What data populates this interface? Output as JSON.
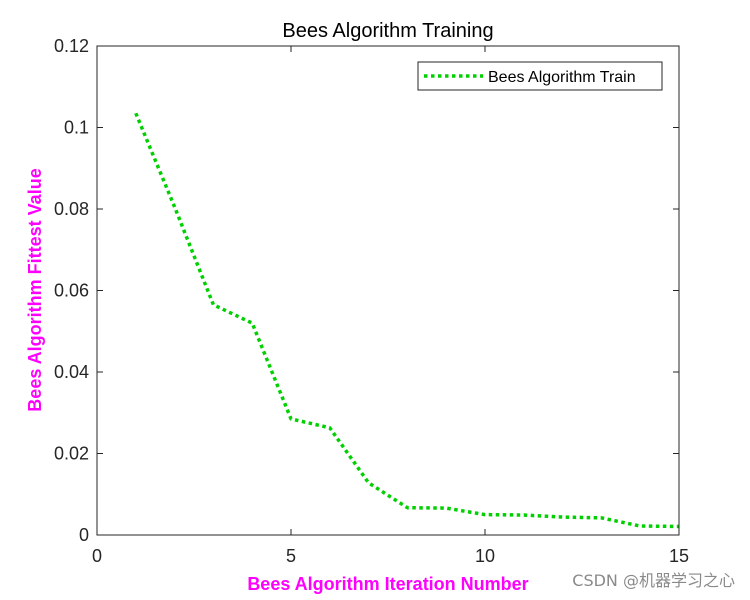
{
  "chart_data": {
    "type": "line",
    "title": "Bees Algorithm Training",
    "xlabel": "Bees Algorithm Iteration Number",
    "ylabel": "Bees Algorithm Fittest Value",
    "xlim": [
      0,
      15
    ],
    "ylim": [
      0,
      0.12
    ],
    "xticks": [
      0,
      5,
      10,
      15
    ],
    "yticks": [
      0,
      0.02,
      0.04,
      0.06,
      0.08,
      0.1,
      0.12
    ],
    "xtick_labels": [
      "0",
      "5",
      "10",
      "15"
    ],
    "ytick_labels": [
      "0",
      "0.02",
      "0.04",
      "0.06",
      "0.08",
      "0.1",
      "0.12"
    ],
    "grid": false,
    "legend_position": "top-right",
    "series": [
      {
        "name": "Bees Algorithm Train",
        "color": "#00d000",
        "line_style": "dotted",
        "x": [
          1,
          2,
          3,
          4,
          5,
          6,
          7,
          8,
          9,
          10,
          11,
          12,
          13,
          14,
          15
        ],
        "y": [
          0.1035,
          0.0805,
          0.0565,
          0.052,
          0.0285,
          0.0263,
          0.0128,
          0.0067,
          0.0066,
          0.005,
          0.0049,
          0.0044,
          0.0042,
          0.0022,
          0.0021
        ]
      }
    ]
  },
  "watermark": "CSDN @机器学习之心"
}
